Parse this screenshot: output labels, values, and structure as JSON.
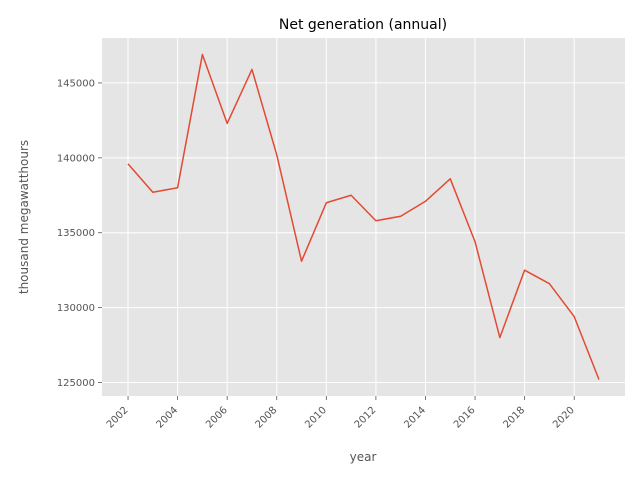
{
  "chart_data": {
    "type": "line",
    "title": "Net generation (annual)",
    "xlabel": "year",
    "ylabel": "thousand megawatthours",
    "x_ticks": [
      2002,
      2004,
      2006,
      2008,
      2010,
      2012,
      2014,
      2016,
      2018,
      2020
    ],
    "y_ticks": [
      125000,
      130000,
      135000,
      140000,
      145000
    ],
    "xlim": [
      2000.95,
      2022.05
    ],
    "ylim": [
      124100,
      148000
    ],
    "grid": true,
    "series": [
      {
        "color": "#E24A33",
        "points": [
          {
            "x": 2002,
            "y": 139600
          },
          {
            "x": 2003,
            "y": 137700
          },
          {
            "x": 2004,
            "y": 138000
          },
          {
            "x": 2005,
            "y": 146900
          },
          {
            "x": 2006,
            "y": 142300
          },
          {
            "x": 2007,
            "y": 145900
          },
          {
            "x": 2008,
            "y": 140200
          },
          {
            "x": 2009,
            "y": 133100
          },
          {
            "x": 2010,
            "y": 137000
          },
          {
            "x": 2011,
            "y": 137500
          },
          {
            "x": 2012,
            "y": 135800
          },
          {
            "x": 2013,
            "y": 136100
          },
          {
            "x": 2014,
            "y": 137100
          },
          {
            "x": 2015,
            "y": 138600
          },
          {
            "x": 2016,
            "y": 134400
          },
          {
            "x": 2017,
            "y": 128000
          },
          {
            "x": 2018,
            "y": 132500
          },
          {
            "x": 2019,
            "y": 131600
          },
          {
            "x": 2020,
            "y": 129400
          },
          {
            "x": 2021,
            "y": 125200
          }
        ]
      }
    ]
  }
}
